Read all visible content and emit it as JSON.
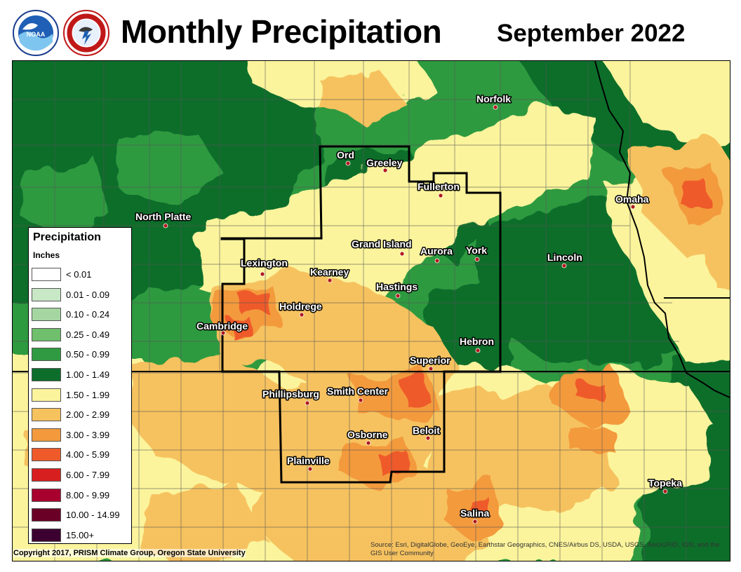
{
  "header": {
    "title": "Monthly Precipitation",
    "subtitle": "September 2022",
    "logos": [
      "noaa-logo",
      "national-weather-service-logo"
    ]
  },
  "legend": {
    "title": "Precipitation",
    "units": "Inches",
    "items": [
      {
        "label": "< 0.01",
        "color": "#ffffff"
      },
      {
        "label": "0.01 - 0.09",
        "color": "#c8e8c6"
      },
      {
        "label": "0.10 - 0.24",
        "color": "#a5d6a1"
      },
      {
        "label": "0.25 - 0.49",
        "color": "#6fbf6c"
      },
      {
        "label": "0.50 - 0.99",
        "color": "#2f9a41"
      },
      {
        "label": "1.00 - 1.49",
        "color": "#0d6e2c"
      },
      {
        "label": "1.50 - 1.99",
        "color": "#fbf49c"
      },
      {
        "label": "2.00 - 2.99",
        "color": "#f6c25e"
      },
      {
        "label": "3.00 - 3.99",
        "color": "#f39a3d"
      },
      {
        "label": "4.00 - 5.99",
        "color": "#ef5a2a"
      },
      {
        "label": "6.00 - 7.99",
        "color": "#d81f1f"
      },
      {
        "label": "8.00 - 9.99",
        "color": "#a8002f"
      },
      {
        "label": "10.00 - 14.99",
        "color": "#6b0027"
      },
      {
        "label": "15.00+",
        "color": "#3b0030"
      }
    ]
  },
  "cities": [
    {
      "name": "Norfolk"
    },
    {
      "name": "Ord"
    },
    {
      "name": "Greeley"
    },
    {
      "name": "Fullerton"
    },
    {
      "name": "Omaha"
    },
    {
      "name": "North Platte"
    },
    {
      "name": "Grand Island"
    },
    {
      "name": "Aurora"
    },
    {
      "name": "York"
    },
    {
      "name": "Lincoln"
    },
    {
      "name": "Lexington"
    },
    {
      "name": "Kearney"
    },
    {
      "name": "Hastings"
    },
    {
      "name": "Holdrege"
    },
    {
      "name": "Cambridge"
    },
    {
      "name": "Hebron"
    },
    {
      "name": "Superior"
    },
    {
      "name": "Phillipsburg"
    },
    {
      "name": "Smith Center"
    },
    {
      "name": "Beloit"
    },
    {
      "name": "Osborne"
    },
    {
      "name": "Plainville"
    },
    {
      "name": "Topeka"
    },
    {
      "name": "Salina"
    }
  ],
  "footer": {
    "copyright": "Copyright 2017, PRISM Climate Group, Oregon State University",
    "source": "Source: Esri, DigitalGlobe, GeoEye, Earthstar Geographics, CNES/Airbus DS, USDA, USGS, AeroGRID, IGN, and the GIS User Community"
  },
  "colors": {
    "state_line": "#000000",
    "county_line": "#555555",
    "city_dot": "#b01818"
  }
}
